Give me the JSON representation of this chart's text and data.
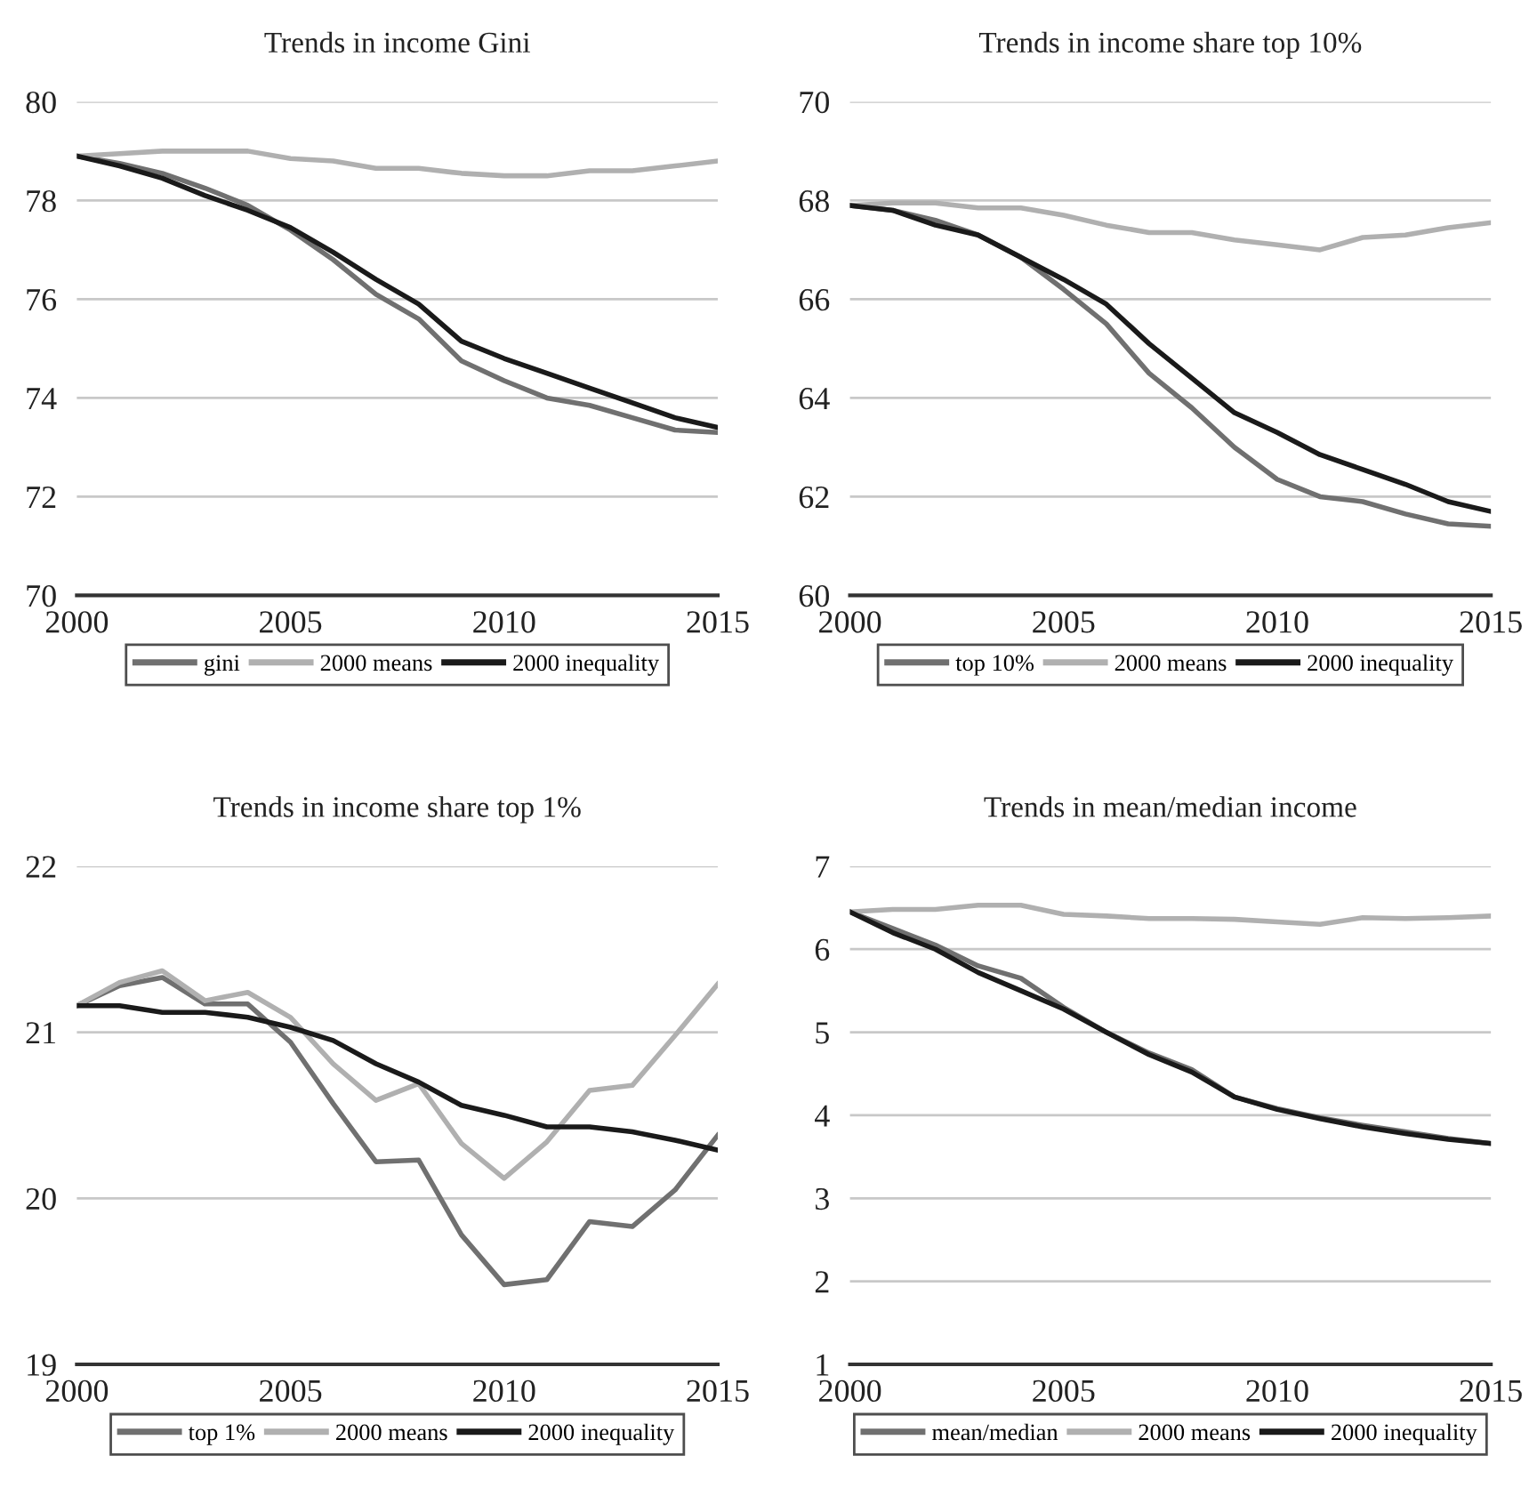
{
  "chart_data": [
    {
      "type": "line",
      "title": "Trends in income Gini",
      "x": [
        2000,
        2001,
        2002,
        2003,
        2004,
        2005,
        2006,
        2007,
        2008,
        2009,
        2010,
        2011,
        2012,
        2013,
        2014,
        2015
      ],
      "xlim": [
        2000,
        2015
      ],
      "xticks": [
        2000,
        2005,
        2010,
        2015
      ],
      "ylim": [
        70,
        80
      ],
      "yticks": [
        70,
        72,
        74,
        76,
        78,
        80
      ],
      "grid": "y",
      "legend": "bottom",
      "series": [
        {
          "name": "gini",
          "color": "#707070",
          "values": [
            78.9,
            78.75,
            78.55,
            78.25,
            77.9,
            77.4,
            76.8,
            76.1,
            75.6,
            74.75,
            74.35,
            74.0,
            73.85,
            73.6,
            73.35,
            73.3
          ]
        },
        {
          "name": "2000 means",
          "color": "#b0b0b0",
          "values": [
            78.9,
            78.95,
            79.0,
            79.0,
            79.0,
            78.85,
            78.8,
            78.65,
            78.65,
            78.55,
            78.5,
            78.5,
            78.6,
            78.6,
            78.7,
            78.8
          ]
        },
        {
          "name": "2000 inequality",
          "color": "#1a1a1a",
          "values": [
            78.9,
            78.7,
            78.45,
            78.1,
            77.8,
            77.45,
            76.95,
            76.4,
            75.9,
            75.15,
            74.8,
            74.5,
            74.2,
            73.9,
            73.6,
            73.4
          ]
        }
      ]
    },
    {
      "type": "line",
      "title": "Trends in income share top 10%",
      "x": [
        2000,
        2001,
        2002,
        2003,
        2004,
        2005,
        2006,
        2007,
        2008,
        2009,
        2010,
        2011,
        2012,
        2013,
        2014,
        2015
      ],
      "xlim": [
        2000,
        2015
      ],
      "xticks": [
        2000,
        2005,
        2010,
        2015
      ],
      "ylim": [
        60,
        70
      ],
      "yticks": [
        60,
        62,
        64,
        66,
        68,
        70
      ],
      "grid": "y",
      "legend": "bottom",
      "series": [
        {
          "name": "top 10%",
          "color": "#707070",
          "values": [
            67.9,
            67.8,
            67.6,
            67.3,
            66.85,
            66.2,
            65.5,
            64.5,
            63.8,
            63.0,
            62.35,
            62.0,
            61.9,
            61.65,
            61.45,
            61.4
          ]
        },
        {
          "name": "2000 means",
          "color": "#b0b0b0",
          "values": [
            67.9,
            67.95,
            67.95,
            67.85,
            67.85,
            67.7,
            67.5,
            67.35,
            67.35,
            67.2,
            67.1,
            67.0,
            67.25,
            67.3,
            67.45,
            67.55
          ]
        },
        {
          "name": "2000 inequality",
          "color": "#1a1a1a",
          "values": [
            67.9,
            67.8,
            67.5,
            67.3,
            66.85,
            66.4,
            65.9,
            65.1,
            64.4,
            63.7,
            63.3,
            62.85,
            62.55,
            62.25,
            61.9,
            61.7
          ]
        }
      ]
    },
    {
      "type": "line",
      "title": "Trends in income share top 1%",
      "x": [
        2000,
        2001,
        2002,
        2003,
        2004,
        2005,
        2006,
        2007,
        2008,
        2009,
        2010,
        2011,
        2012,
        2013,
        2014,
        2015
      ],
      "xlim": [
        2000,
        2015
      ],
      "xticks": [
        2000,
        2005,
        2010,
        2015
      ],
      "ylim": [
        19,
        22
      ],
      "yticks": [
        19,
        20,
        21,
        22
      ],
      "grid": "y",
      "legend": "bottom",
      "series": [
        {
          "name": "top 1%",
          "color": "#707070",
          "values": [
            21.16,
            21.28,
            21.33,
            21.17,
            21.17,
            20.94,
            20.57,
            20.22,
            20.23,
            19.78,
            19.48,
            19.51,
            19.86,
            19.83,
            20.05,
            20.38
          ]
        },
        {
          "name": "2000 means",
          "color": "#b0b0b0",
          "values": [
            21.16,
            21.3,
            21.37,
            21.19,
            21.24,
            21.09,
            20.81,
            20.59,
            20.69,
            20.33,
            20.12,
            20.34,
            20.65,
            20.68,
            20.98,
            21.29
          ]
        },
        {
          "name": "2000 inequality",
          "color": "#1a1a1a",
          "values": [
            21.16,
            21.16,
            21.12,
            21.12,
            21.09,
            21.03,
            20.95,
            20.81,
            20.7,
            20.56,
            20.5,
            20.43,
            20.43,
            20.4,
            20.35,
            20.29
          ]
        }
      ]
    },
    {
      "type": "line",
      "title": "Trends in mean/median income",
      "x": [
        2000,
        2001,
        2002,
        2003,
        2004,
        2005,
        2006,
        2007,
        2008,
        2009,
        2010,
        2011,
        2012,
        2013,
        2014,
        2015
      ],
      "xlim": [
        2000,
        2015
      ],
      "xticks": [
        2000,
        2005,
        2010,
        2015
      ],
      "ylim": [
        1,
        7
      ],
      "yticks": [
        1,
        2,
        3,
        4,
        5,
        6,
        7
      ],
      "grid": "y",
      "legend": "bottom",
      "series": [
        {
          "name": "mean/median",
          "color": "#707070",
          "values": [
            6.45,
            6.25,
            6.05,
            5.8,
            5.65,
            5.3,
            5.0,
            4.75,
            4.55,
            4.22,
            4.08,
            3.97,
            3.88,
            3.8,
            3.72,
            3.66
          ]
        },
        {
          "name": "2000 means",
          "color": "#b0b0b0",
          "values": [
            6.45,
            6.48,
            6.48,
            6.53,
            6.53,
            6.42,
            6.4,
            6.37,
            6.37,
            6.36,
            6.33,
            6.3,
            6.38,
            6.37,
            6.38,
            6.4
          ]
        },
        {
          "name": "2000 inequality",
          "color": "#1a1a1a",
          "values": [
            6.45,
            6.2,
            6.0,
            5.72,
            5.5,
            5.28,
            5.0,
            4.73,
            4.52,
            4.22,
            4.07,
            3.96,
            3.86,
            3.78,
            3.71,
            3.66
          ]
        }
      ]
    }
  ]
}
